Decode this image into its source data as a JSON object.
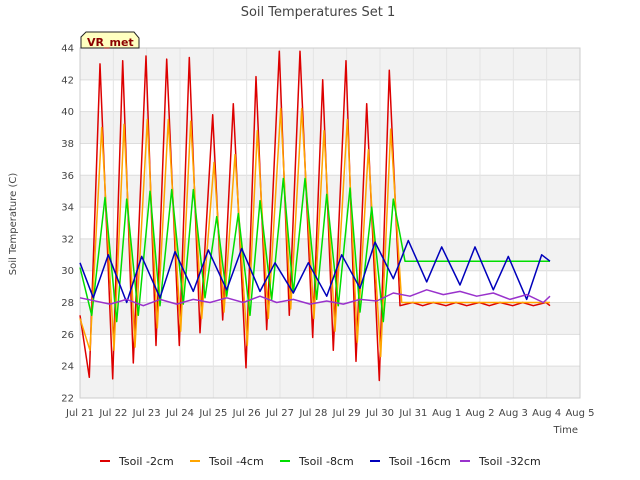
{
  "chart_data": {
    "type": "line",
    "title": "Soil Temperatures Set 1",
    "xlabel": "Time",
    "ylabel": "Soil Temperature (C)",
    "station_label": "VR_met",
    "xlim": [
      0,
      15
    ],
    "ylim": [
      22,
      44
    ],
    "yticks": [
      22,
      24,
      26,
      28,
      30,
      32,
      34,
      36,
      38,
      40,
      42,
      44
    ],
    "xtick_labels": [
      "Jul 21",
      "Jul 22",
      "Jul 23",
      "Jul 24",
      "Jul 25",
      "Jul 26",
      "Jul 27",
      "Jul 28",
      "Jul 29",
      "Jul 30",
      "Jul 31",
      "Aug 1",
      "Aug 2",
      "Aug 3",
      "Aug 4",
      "Aug 5"
    ],
    "grid": true,
    "legend_position": "bottom",
    "series": [
      {
        "name": "Tsoil -2cm",
        "color": "#dd0000",
        "x": [
          0.0,
          0.28,
          0.6,
          0.98,
          1.28,
          1.6,
          1.98,
          2.28,
          2.6,
          2.98,
          3.28,
          3.6,
          3.98,
          4.28,
          4.6,
          4.98,
          5.28,
          5.6,
          5.98,
          6.28,
          6.6,
          6.98,
          7.28,
          7.6,
          7.98,
          8.28,
          8.6,
          8.98,
          9.28,
          9.6,
          9.98,
          10.28,
          10.6,
          10.98,
          11.28,
          11.6,
          11.98,
          12.28,
          12.6,
          12.98,
          13.28,
          13.6,
          13.98,
          14.1
        ],
        "y": [
          27.2,
          23.3,
          43.0,
          23.2,
          43.2,
          24.2,
          43.5,
          25.3,
          43.3,
          25.3,
          43.4,
          26.1,
          39.8,
          26.9,
          40.5,
          23.9,
          42.2,
          26.3,
          43.8,
          27.2,
          43.8,
          25.8,
          42.0,
          25.0,
          43.2,
          24.3,
          40.5,
          23.1,
          42.6,
          27.8,
          28.0,
          27.8,
          28.0,
          27.8,
          28.0,
          27.8,
          28.0,
          27.8,
          28.0,
          27.8,
          28.0,
          27.8,
          28.0,
          27.8
        ]
      },
      {
        "name": "Tsoil -4cm",
        "color": "#ffa500",
        "x": [
          0.0,
          0.3,
          0.65,
          1.02,
          1.32,
          1.65,
          2.02,
          2.32,
          2.65,
          3.02,
          3.32,
          3.65,
          4.02,
          4.32,
          4.65,
          5.02,
          5.32,
          5.65,
          6.02,
          6.32,
          6.65,
          7.02,
          7.32,
          7.65,
          8.02,
          8.32,
          8.65,
          9.02,
          9.32,
          9.65,
          10.02,
          10.32,
          10.65,
          11.02,
          11.32,
          11.65,
          12.02,
          12.32,
          12.65,
          13.02,
          13.32,
          13.65,
          14.02,
          14.1
        ],
        "y": [
          27.0,
          25.0,
          39.0,
          25.0,
          39.2,
          25.2,
          39.5,
          26.4,
          39.5,
          26.2,
          39.4,
          27.0,
          36.8,
          27.4,
          37.3,
          25.3,
          38.8,
          27.0,
          40.2,
          27.6,
          40.2,
          27.0,
          38.8,
          26.2,
          39.5,
          25.5,
          37.6,
          24.6,
          38.9,
          28.0,
          28.0,
          28.0,
          28.0,
          28.0,
          28.0,
          28.0,
          28.0,
          28.0,
          28.0,
          28.0,
          28.0,
          28.0,
          28.0,
          28.0
        ]
      },
      {
        "name": "Tsoil -8cm",
        "color": "#00dd00",
        "x": [
          0.0,
          0.35,
          0.75,
          1.1,
          1.4,
          1.75,
          2.1,
          2.4,
          2.75,
          3.1,
          3.4,
          3.75,
          4.1,
          4.4,
          4.75,
          5.1,
          5.4,
          5.75,
          6.1,
          6.4,
          6.75,
          7.1,
          7.4,
          7.75,
          8.1,
          8.4,
          8.75,
          9.1,
          9.4,
          9.75,
          10.1,
          10.4,
          10.75,
          11.1,
          11.4,
          11.75,
          12.1,
          12.4,
          12.75,
          13.1,
          13.4,
          13.75,
          14.1
        ],
        "y": [
          30.2,
          27.2,
          34.6,
          26.8,
          34.5,
          27.2,
          35.0,
          27.8,
          35.1,
          27.9,
          35.1,
          28.3,
          33.4,
          28.4,
          33.6,
          27.2,
          34.4,
          28.2,
          35.8,
          28.6,
          35.8,
          28.2,
          34.8,
          27.8,
          35.2,
          27.4,
          34.0,
          26.8,
          34.5,
          30.6,
          30.6,
          30.6,
          30.6,
          30.6,
          30.6,
          30.6,
          30.6,
          30.6,
          30.6,
          30.6,
          30.6,
          30.6,
          30.6
        ]
      },
      {
        "name": "Tsoil -16cm",
        "color": "#0000bb",
        "x": [
          0.0,
          0.4,
          0.85,
          1.4,
          1.85,
          2.4,
          2.85,
          3.4,
          3.85,
          4.4,
          4.85,
          5.4,
          5.85,
          6.4,
          6.85,
          7.4,
          7.85,
          8.4,
          8.85,
          9.4,
          9.85,
          10.4,
          10.85,
          11.4,
          11.85,
          12.4,
          12.85,
          13.4,
          13.85,
          14.1
        ],
        "y": [
          30.5,
          28.3,
          31.0,
          28.0,
          30.9,
          28.3,
          31.2,
          28.7,
          31.3,
          28.8,
          31.4,
          28.7,
          30.5,
          28.6,
          30.5,
          28.4,
          31.0,
          28.9,
          31.8,
          29.5,
          31.9,
          29.3,
          31.5,
          29.1,
          31.5,
          28.8,
          30.9,
          28.2,
          31.0,
          30.6
        ]
      },
      {
        "name": "Tsoil -32cm",
        "color": "#9932cc",
        "x": [
          0.0,
          0.9,
          1.4,
          1.9,
          2.4,
          2.9,
          3.4,
          3.9,
          4.4,
          4.9,
          5.4,
          5.9,
          6.4,
          6.9,
          7.4,
          7.9,
          8.4,
          8.9,
          9.4,
          9.9,
          10.4,
          10.9,
          11.4,
          11.9,
          12.4,
          12.9,
          13.4,
          13.9,
          14.1
        ],
        "y": [
          28.3,
          27.9,
          28.2,
          27.8,
          28.2,
          27.9,
          28.2,
          28.0,
          28.3,
          28.0,
          28.4,
          28.0,
          28.2,
          27.9,
          28.1,
          27.9,
          28.2,
          28.1,
          28.6,
          28.4,
          28.8,
          28.5,
          28.7,
          28.4,
          28.6,
          28.2,
          28.5,
          28.0,
          28.4
        ]
      }
    ]
  }
}
